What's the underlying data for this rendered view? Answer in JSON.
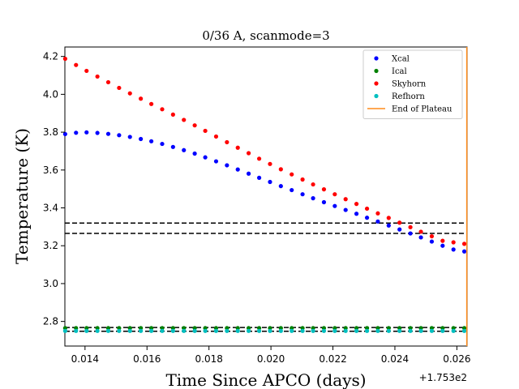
{
  "chart_data": {
    "type": "scatter",
    "title": "0/36 A, scanmode=3",
    "xlabel": "Time Since APCO (days)",
    "ylabel": "Temperature (K)",
    "x_offset_label": "+1.753e2",
    "x_offset": 175.3,
    "xlim": [
      0.01335,
      0.02633
    ],
    "ylim": [
      2.67,
      4.25
    ],
    "xticks": [
      0.014,
      0.016,
      0.018,
      0.02,
      0.022,
      0.024,
      0.026
    ],
    "xtick_labels": [
      "0.014",
      "0.016",
      "0.018",
      "0.020",
      "0.022",
      "0.024",
      "0.026"
    ],
    "yticks": [
      2.8,
      3.0,
      3.2,
      3.4,
      3.6,
      3.8,
      4.0,
      4.2
    ],
    "ytick_labels": [
      "2.8",
      "3.0",
      "3.2",
      "3.4",
      "3.6",
      "3.8",
      "4.0",
      "4.2"
    ],
    "legend_position": "top-right",
    "grid": false,
    "x": [
      0.01336,
      0.01371,
      0.01405,
      0.0144,
      0.01475,
      0.0151,
      0.01545,
      0.0158,
      0.01614,
      0.01649,
      0.01684,
      0.01719,
      0.01754,
      0.01788,
      0.01823,
      0.01858,
      0.01893,
      0.01928,
      0.01962,
      0.01997,
      0.02032,
      0.02067,
      0.02102,
      0.02136,
      0.02171,
      0.02206,
      0.02241,
      0.02276,
      0.0231,
      0.02345,
      0.0238,
      0.02415,
      0.0245,
      0.02484,
      0.02519,
      0.02554,
      0.02589,
      0.02624
    ],
    "series": [
      {
        "name": "Xcal",
        "color": "#0000ff",
        "values": [
          3.79,
          3.797,
          3.799,
          3.796,
          3.791,
          3.784,
          3.775,
          3.764,
          3.752,
          3.738,
          3.722,
          3.705,
          3.687,
          3.667,
          3.646,
          3.625,
          3.603,
          3.581,
          3.559,
          3.537,
          3.515,
          3.494,
          3.472,
          3.451,
          3.43,
          3.41,
          3.389,
          3.369,
          3.348,
          3.328,
          3.307,
          3.286,
          3.265,
          3.244,
          3.222,
          3.2,
          3.18,
          3.17
        ]
      },
      {
        "name": "Ical",
        "color": "#008000",
        "values": [
          2.765,
          2.765,
          2.765,
          2.765,
          2.765,
          2.765,
          2.765,
          2.765,
          2.765,
          2.765,
          2.765,
          2.765,
          2.765,
          2.765,
          2.765,
          2.765,
          2.765,
          2.765,
          2.765,
          2.765,
          2.765,
          2.765,
          2.765,
          2.765,
          2.765,
          2.765,
          2.765,
          2.765,
          2.765,
          2.765,
          2.765,
          2.765,
          2.765,
          2.765,
          2.765,
          2.765,
          2.765,
          2.765
        ]
      },
      {
        "name": "Skyhorn",
        "color": "#ff0000",
        "values": [
          4.188,
          4.155,
          4.124,
          4.094,
          4.064,
          4.034,
          4.005,
          3.977,
          3.949,
          3.921,
          3.893,
          3.865,
          3.836,
          3.807,
          3.777,
          3.747,
          3.718,
          3.689,
          3.66,
          3.632,
          3.604,
          3.577,
          3.55,
          3.524,
          3.498,
          3.472,
          3.446,
          3.421,
          3.396,
          3.371,
          3.347,
          3.322,
          3.298,
          3.274,
          3.25,
          3.226,
          3.218,
          3.21
        ]
      },
      {
        "name": "Refhorn",
        "color": "#00bfbf",
        "values": [
          2.75,
          2.75,
          2.75,
          2.75,
          2.75,
          2.75,
          2.75,
          2.75,
          2.75,
          2.75,
          2.75,
          2.75,
          2.75,
          2.75,
          2.75,
          2.75,
          2.75,
          2.75,
          2.75,
          2.75,
          2.75,
          2.75,
          2.75,
          2.75,
          2.75,
          2.75,
          2.75,
          2.75,
          2.75,
          2.75,
          2.75,
          2.75,
          2.75,
          2.75,
          2.75,
          2.75,
          2.75,
          2.75
        ]
      }
    ],
    "vertical_lines": [
      {
        "name": "End of Plateau",
        "color": "#ff8c1a",
        "x": 0.02632
      }
    ],
    "horizontal_dashed_lines": [
      {
        "y": 3.32,
        "color": "#000000"
      },
      {
        "y": 3.265,
        "color": "#000000"
      },
      {
        "y": 2.768,
        "color": "#000000"
      },
      {
        "y": 2.748,
        "color": "#000000"
      }
    ],
    "legend": [
      {
        "label": "Xcal",
        "marker": "dot",
        "color": "#0000ff"
      },
      {
        "label": "Ical",
        "marker": "dot",
        "color": "#008000"
      },
      {
        "label": "Skyhorn",
        "marker": "dot",
        "color": "#ff0000"
      },
      {
        "label": "Refhorn",
        "marker": "dot",
        "color": "#00bfbf"
      },
      {
        "label": "End of Plateau",
        "marker": "line",
        "color": "#ff8c1a"
      }
    ]
  }
}
